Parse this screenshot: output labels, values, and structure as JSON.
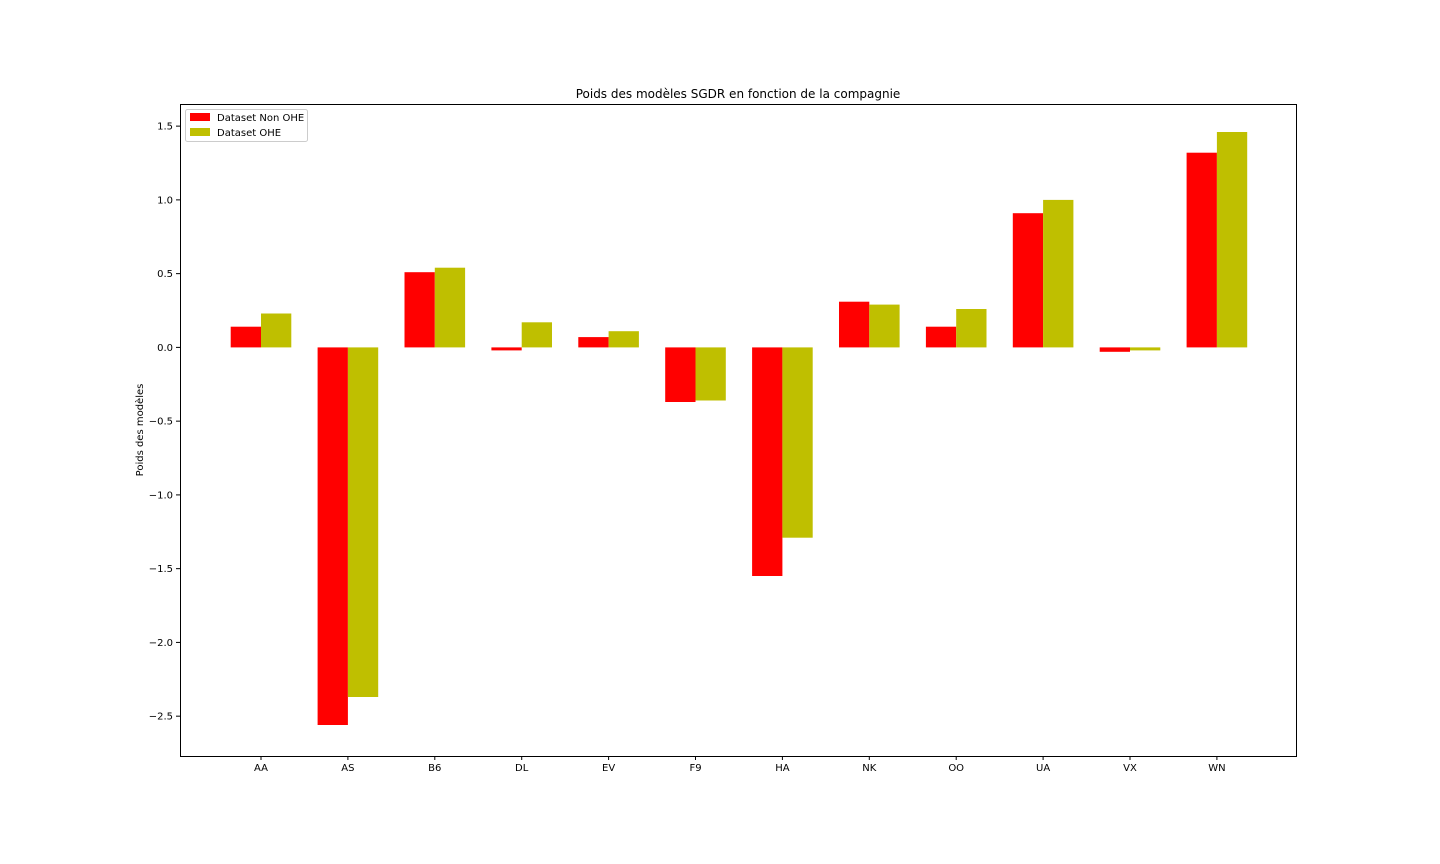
{
  "chart_data": {
    "type": "bar",
    "title": "Poids des modèles SGDR en fonction de la compagnie",
    "xlabel": "",
    "ylabel": "Poids des modèles",
    "categories": [
      "AA",
      "AS",
      "B6",
      "DL",
      "EV",
      "F9",
      "HA",
      "NK",
      "OO",
      "UA",
      "VX",
      "WN"
    ],
    "series": [
      {
        "name": "Dataset Non OHE",
        "color": "#ff0000",
        "values": [
          0.14,
          -2.56,
          0.51,
          -0.02,
          0.07,
          -0.37,
          -1.55,
          0.31,
          0.14,
          0.91,
          -0.03,
          1.32
        ]
      },
      {
        "name": "Dataset OHE",
        "color": "#bfbf00",
        "values": [
          0.23,
          -2.37,
          0.54,
          0.17,
          0.11,
          -0.36,
          -1.29,
          0.29,
          0.26,
          1.0,
          -0.02,
          1.46
        ]
      }
    ],
    "ylim": [
      -2.77,
      1.65
    ],
    "yticks": [
      -2.5,
      -2.0,
      -1.5,
      -1.0,
      -0.5,
      0.0,
      0.5,
      1.0,
      1.5
    ],
    "ytick_labels": [
      "−2.5",
      "−2.0",
      "−1.5",
      "−1.0",
      "−0.5",
      "0.0",
      "0.5",
      "1.0",
      "1.5"
    ],
    "grid": false,
    "legend_position": "top-left"
  }
}
